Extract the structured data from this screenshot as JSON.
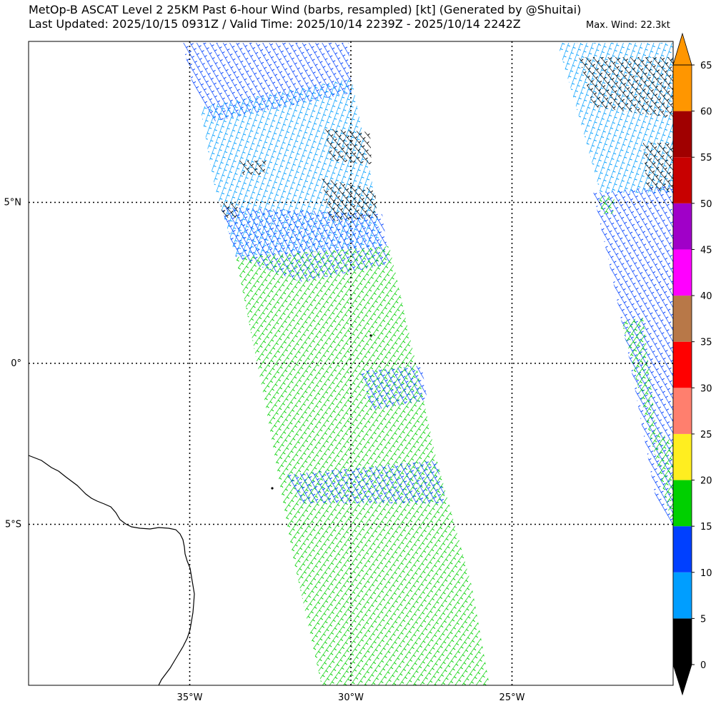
{
  "title_line1": "MetOp-B ASCAT Level 2 25KM Past 6-hour Wind (barbs, resampled) [kt] (Generated by @Shuitai)",
  "title_line2": "Last Updated: 2025/10/15 0931Z / Valid Time: 2025/10/14 2239Z - 2025/10/14 2242Z",
  "max_wind": "Max. Wind: 22.3kt",
  "lat_labels": [
    "5°N",
    "0°",
    "5°S"
  ],
  "lon_labels": [
    "35°W",
    "30°W",
    "25°W"
  ],
  "colorbar": {
    "ticks": [
      "0",
      "5",
      "10",
      "15",
      "20",
      "25",
      "30",
      "35",
      "40",
      "45",
      "50",
      "55",
      "60",
      "65"
    ],
    "colors": [
      "#000000",
      "#009eff",
      "#0040ff",
      "#00d000",
      "#ffee20",
      "#ff7f6e",
      "#ff0000",
      "#b87848",
      "#ff00ff",
      "#a000c8",
      "#c80000",
      "#a00000",
      "#ff9600"
    ],
    "min_extend_color": "#000000",
    "max_extend_color": "#ff9600"
  },
  "map": {
    "lat_range": [
      -10.0,
      10.0
    ],
    "lon_range": [
      -40.0,
      -20.0
    ],
    "gridlines": true,
    "legend": "right"
  }
}
